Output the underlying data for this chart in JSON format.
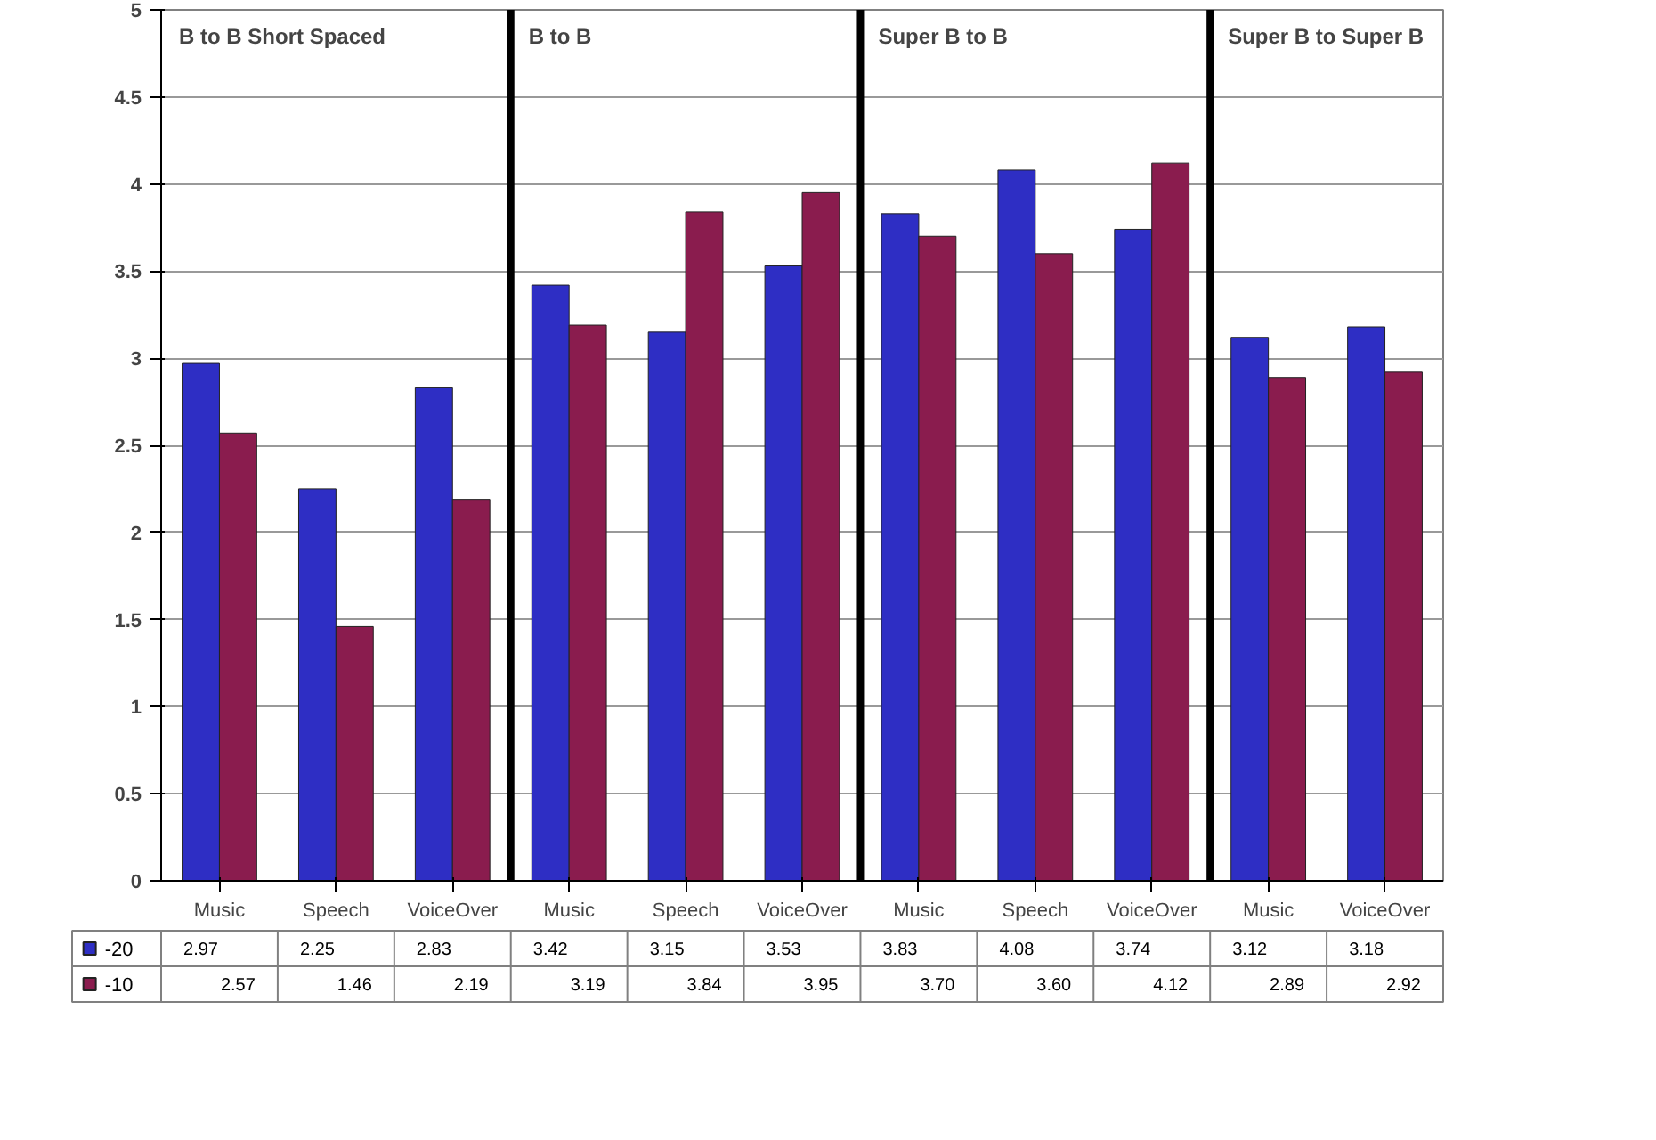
{
  "chart_data": {
    "type": "bar",
    "categories": [
      "Music",
      "Speech",
      "VoiceOver",
      "Music",
      "Speech",
      "VoiceOver",
      "Music",
      "Speech",
      "VoiceOver",
      "Music",
      "VoiceOver"
    ],
    "series": [
      {
        "name": "-20",
        "color": "#2e2ec4",
        "values": [
          2.97,
          2.25,
          2.83,
          3.42,
          3.15,
          3.53,
          3.83,
          4.08,
          3.74,
          3.12,
          3.18
        ],
        "value_labels": [
          "2.97",
          "2.25",
          "2.83",
          "3.42",
          "3.15",
          "3.53",
          "3.83",
          "4.08",
          "3.74",
          "3.12",
          "3.18"
        ]
      },
      {
        "name": "-10",
        "color": "#8a1c4e",
        "values": [
          2.57,
          1.46,
          2.19,
          3.19,
          3.84,
          3.95,
          3.7,
          3.6,
          4.12,
          2.89,
          2.92
        ],
        "value_labels": [
          "2.57",
          "1.46",
          "2.19",
          "3.19",
          "3.84",
          "3.95",
          "3.70",
          "3.60",
          "4.12",
          "2.89",
          "2.92"
        ]
      }
    ],
    "ylim": [
      0,
      5
    ],
    "yticks": [
      0,
      0.5,
      1,
      1.5,
      2,
      2.5,
      3,
      3.5,
      4,
      4.5,
      5
    ],
    "grid": "y",
    "legend": "bottom left",
    "annotations": [
      "B to B Short Spaced",
      "B to B",
      "Super B to B",
      "Super B to Super B"
    ]
  }
}
